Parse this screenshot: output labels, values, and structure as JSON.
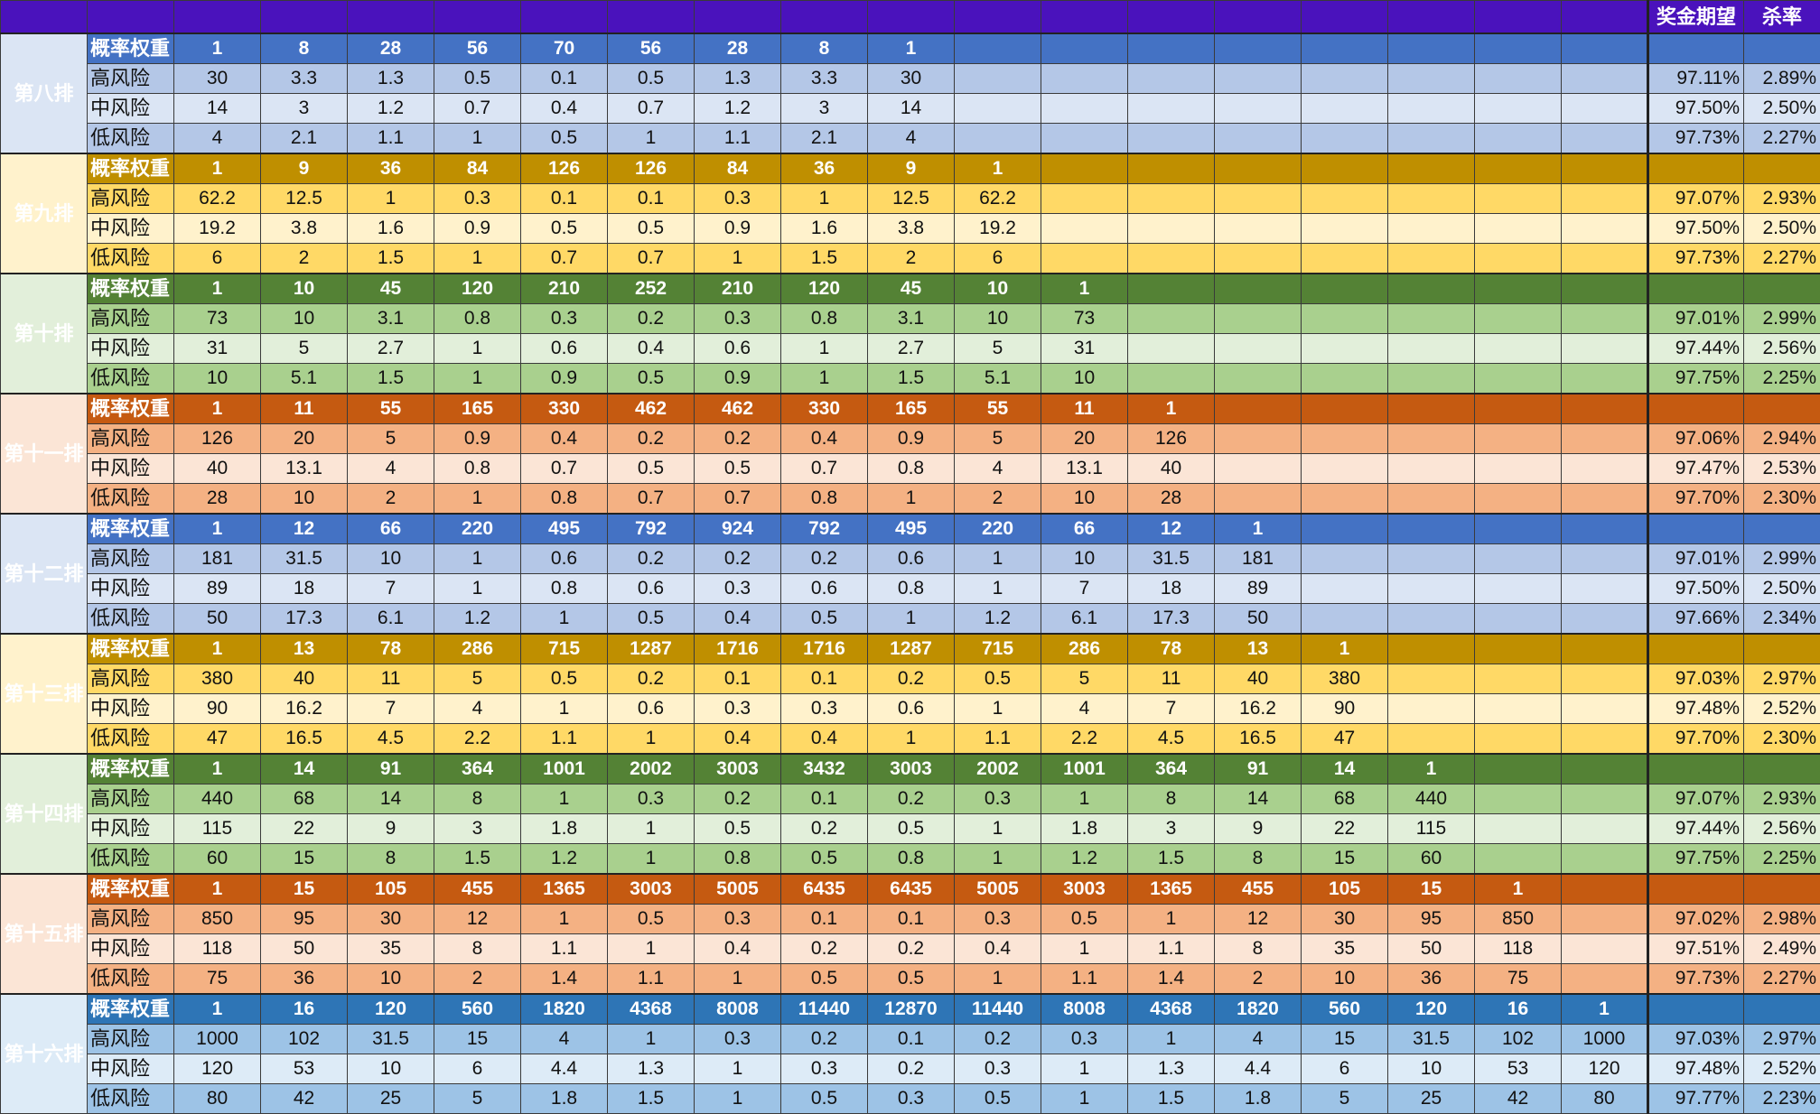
{
  "header": {
    "expected_label": "奖金期望",
    "kill_label": "杀率"
  },
  "groups": [
    {
      "name": "第八排",
      "colors": {
        "weight": "#4472c4",
        "band": "#b4c7e7",
        "light": "#dbe5f4"
      },
      "rows": [
        {
          "label": "概率权重",
          "values": [
            "1",
            "8",
            "28",
            "56",
            "70",
            "56",
            "28",
            "8",
            "1"
          ],
          "expected": "",
          "kill": ""
        },
        {
          "label": "高风险",
          "values": [
            "30",
            "3.3",
            "1.3",
            "0.5",
            "0.1",
            "0.5",
            "1.3",
            "3.3",
            "30"
          ],
          "expected": "97.11%",
          "kill": "2.89%"
        },
        {
          "label": "中风险",
          "values": [
            "14",
            "3",
            "1.2",
            "0.7",
            "0.4",
            "0.7",
            "1.2",
            "3",
            "14"
          ],
          "expected": "97.50%",
          "kill": "2.50%"
        },
        {
          "label": "低风险",
          "values": [
            "4",
            "2.1",
            "1.1",
            "1",
            "0.5",
            "1",
            "1.1",
            "2.1",
            "4"
          ],
          "expected": "97.73%",
          "kill": "2.27%"
        }
      ]
    },
    {
      "name": "第九排",
      "colors": {
        "weight": "#bf8f00",
        "band": "#ffd966",
        "light": "#fff2cc"
      },
      "rows": [
        {
          "label": "概率权重",
          "values": [
            "1",
            "9",
            "36",
            "84",
            "126",
            "126",
            "84",
            "36",
            "9",
            "1"
          ],
          "expected": "",
          "kill": ""
        },
        {
          "label": "高风险",
          "values": [
            "62.2",
            "12.5",
            "1",
            "0.3",
            "0.1",
            "0.1",
            "0.3",
            "1",
            "12.5",
            "62.2"
          ],
          "expected": "97.07%",
          "kill": "2.93%"
        },
        {
          "label": "中风险",
          "values": [
            "19.2",
            "3.8",
            "1.6",
            "0.9",
            "0.5",
            "0.5",
            "0.9",
            "1.6",
            "3.8",
            "19.2"
          ],
          "expected": "97.50%",
          "kill": "2.50%"
        },
        {
          "label": "低风险",
          "values": [
            "6",
            "2",
            "1.5",
            "1",
            "0.7",
            "0.7",
            "1",
            "1.5",
            "2",
            "6"
          ],
          "expected": "97.73%",
          "kill": "2.27%"
        }
      ]
    },
    {
      "name": "第十排",
      "colors": {
        "weight": "#548235",
        "band": "#a9d08e",
        "light": "#e2efda"
      },
      "rows": [
        {
          "label": "概率权重",
          "values": [
            "1",
            "10",
            "45",
            "120",
            "210",
            "252",
            "210",
            "120",
            "45",
            "10",
            "1"
          ],
          "expected": "",
          "kill": ""
        },
        {
          "label": "高风险",
          "values": [
            "73",
            "10",
            "3.1",
            "0.8",
            "0.3",
            "0.2",
            "0.3",
            "0.8",
            "3.1",
            "10",
            "73"
          ],
          "expected": "97.01%",
          "kill": "2.99%"
        },
        {
          "label": "中风险",
          "values": [
            "31",
            "5",
            "2.7",
            "1",
            "0.6",
            "0.4",
            "0.6",
            "1",
            "2.7",
            "5",
            "31"
          ],
          "expected": "97.44%",
          "kill": "2.56%"
        },
        {
          "label": "低风险",
          "values": [
            "10",
            "5.1",
            "1.5",
            "1",
            "0.9",
            "0.5",
            "0.9",
            "1",
            "1.5",
            "5.1",
            "10"
          ],
          "expected": "97.75%",
          "kill": "2.25%"
        }
      ]
    },
    {
      "name": "第十一排",
      "colors": {
        "weight": "#c55a11",
        "band": "#f4b183",
        "light": "#fbe5d6"
      },
      "rows": [
        {
          "label": "概率权重",
          "values": [
            "1",
            "11",
            "55",
            "165",
            "330",
            "462",
            "462",
            "330",
            "165",
            "55",
            "11",
            "1"
          ],
          "expected": "",
          "kill": ""
        },
        {
          "label": "高风险",
          "values": [
            "126",
            "20",
            "5",
            "0.9",
            "0.4",
            "0.2",
            "0.2",
            "0.4",
            "0.9",
            "5",
            "20",
            "126"
          ],
          "expected": "97.06%",
          "kill": "2.94%"
        },
        {
          "label": "中风险",
          "values": [
            "40",
            "13.1",
            "4",
            "0.8",
            "0.7",
            "0.5",
            "0.5",
            "0.7",
            "0.8",
            "4",
            "13.1",
            "40"
          ],
          "expected": "97.47%",
          "kill": "2.53%"
        },
        {
          "label": "低风险",
          "values": [
            "28",
            "10",
            "2",
            "1",
            "0.8",
            "0.7",
            "0.7",
            "0.8",
            "1",
            "2",
            "10",
            "28"
          ],
          "expected": "97.70%",
          "kill": "2.30%"
        }
      ]
    },
    {
      "name": "第十二排",
      "colors": {
        "weight": "#4472c4",
        "band": "#b4c7e7",
        "light": "#dbe5f4"
      },
      "rows": [
        {
          "label": "概率权重",
          "values": [
            "1",
            "12",
            "66",
            "220",
            "495",
            "792",
            "924",
            "792",
            "495",
            "220",
            "66",
            "12",
            "1"
          ],
          "expected": "",
          "kill": ""
        },
        {
          "label": "高风险",
          "values": [
            "181",
            "31.5",
            "10",
            "1",
            "0.6",
            "0.2",
            "0.2",
            "0.2",
            "0.6",
            "1",
            "10",
            "31.5",
            "181"
          ],
          "expected": "97.01%",
          "kill": "2.99%"
        },
        {
          "label": "中风险",
          "values": [
            "89",
            "18",
            "7",
            "1",
            "0.8",
            "0.6",
            "0.3",
            "0.6",
            "0.8",
            "1",
            "7",
            "18",
            "89"
          ],
          "expected": "97.50%",
          "kill": "2.50%"
        },
        {
          "label": "低风险",
          "values": [
            "50",
            "17.3",
            "6.1",
            "1.2",
            "1",
            "0.5",
            "0.4",
            "0.5",
            "1",
            "1.2",
            "6.1",
            "17.3",
            "50"
          ],
          "expected": "97.66%",
          "kill": "2.34%"
        }
      ]
    },
    {
      "name": "第十三排",
      "colors": {
        "weight": "#bf8f00",
        "band": "#ffd966",
        "light": "#fff2cc"
      },
      "rows": [
        {
          "label": "概率权重",
          "values": [
            "1",
            "13",
            "78",
            "286",
            "715",
            "1287",
            "1716",
            "1716",
            "1287",
            "715",
            "286",
            "78",
            "13",
            "1"
          ],
          "expected": "",
          "kill": ""
        },
        {
          "label": "高风险",
          "values": [
            "380",
            "40",
            "11",
            "5",
            "0.5",
            "0.2",
            "0.1",
            "0.1",
            "0.2",
            "0.5",
            "5",
            "11",
            "40",
            "380"
          ],
          "expected": "97.03%",
          "kill": "2.97%"
        },
        {
          "label": "中风险",
          "values": [
            "90",
            "16.2",
            "7",
            "4",
            "1",
            "0.6",
            "0.3",
            "0.3",
            "0.6",
            "1",
            "4",
            "7",
            "16.2",
            "90"
          ],
          "expected": "97.48%",
          "kill": "2.52%"
        },
        {
          "label": "低风险",
          "values": [
            "47",
            "16.5",
            "4.5",
            "2.2",
            "1.1",
            "1",
            "0.4",
            "0.4",
            "1",
            "1.1",
            "2.2",
            "4.5",
            "16.5",
            "47"
          ],
          "expected": "97.70%",
          "kill": "2.30%"
        }
      ]
    },
    {
      "name": "第十四排",
      "colors": {
        "weight": "#548235",
        "band": "#a9d08e",
        "light": "#e2efda"
      },
      "rows": [
        {
          "label": "概率权重",
          "values": [
            "1",
            "14",
            "91",
            "364",
            "1001",
            "2002",
            "3003",
            "3432",
            "3003",
            "2002",
            "1001",
            "364",
            "91",
            "14",
            "1"
          ],
          "expected": "",
          "kill": ""
        },
        {
          "label": "高风险",
          "values": [
            "440",
            "68",
            "14",
            "8",
            "1",
            "0.3",
            "0.2",
            "0.1",
            "0.2",
            "0.3",
            "1",
            "8",
            "14",
            "68",
            "440"
          ],
          "expected": "97.07%",
          "kill": "2.93%"
        },
        {
          "label": "中风险",
          "values": [
            "115",
            "22",
            "9",
            "3",
            "1.8",
            "1",
            "0.5",
            "0.2",
            "0.5",
            "1",
            "1.8",
            "3",
            "9",
            "22",
            "115"
          ],
          "expected": "97.44%",
          "kill": "2.56%"
        },
        {
          "label": "低风险",
          "values": [
            "60",
            "15",
            "8",
            "1.5",
            "1.2",
            "1",
            "0.8",
            "0.5",
            "0.8",
            "1",
            "1.2",
            "1.5",
            "8",
            "15",
            "60"
          ],
          "expected": "97.75%",
          "kill": "2.25%"
        }
      ]
    },
    {
      "name": "第十五排",
      "colors": {
        "weight": "#c55a11",
        "band": "#f4b183",
        "light": "#fbe5d6"
      },
      "rows": [
        {
          "label": "概率权重",
          "values": [
            "1",
            "15",
            "105",
            "455",
            "1365",
            "3003",
            "5005",
            "6435",
            "6435",
            "5005",
            "3003",
            "1365",
            "455",
            "105",
            "15",
            "1"
          ],
          "expected": "",
          "kill": ""
        },
        {
          "label": "高风险",
          "values": [
            "850",
            "95",
            "30",
            "12",
            "1",
            "0.5",
            "0.3",
            "0.1",
            "0.1",
            "0.3",
            "0.5",
            "1",
            "12",
            "30",
            "95",
            "850"
          ],
          "expected": "97.02%",
          "kill": "2.98%"
        },
        {
          "label": "中风险",
          "values": [
            "118",
            "50",
            "35",
            "8",
            "1.1",
            "1",
            "0.4",
            "0.2",
            "0.2",
            "0.4",
            "1",
            "1.1",
            "8",
            "35",
            "50",
            "118"
          ],
          "expected": "97.51%",
          "kill": "2.49%"
        },
        {
          "label": "低风险",
          "values": [
            "75",
            "36",
            "10",
            "2",
            "1.4",
            "1.1",
            "1",
            "0.5",
            "0.5",
            "1",
            "1.1",
            "1.4",
            "2",
            "10",
            "36",
            "75"
          ],
          "expected": "97.73%",
          "kill": "2.27%"
        }
      ]
    },
    {
      "name": "第十六排",
      "colors": {
        "weight": "#2e75b6",
        "band": "#9dc3e6",
        "light": "#ddebf7"
      },
      "rows": [
        {
          "label": "概率权重",
          "values": [
            "1",
            "16",
            "120",
            "560",
            "1820",
            "4368",
            "8008",
            "11440",
            "12870",
            "11440",
            "8008",
            "4368",
            "1820",
            "560",
            "120",
            "16",
            "1"
          ],
          "expected": "",
          "kill": ""
        },
        {
          "label": "高风险",
          "values": [
            "1000",
            "102",
            "31.5",
            "15",
            "4",
            "1",
            "0.3",
            "0.2",
            "0.1",
            "0.2",
            "0.3",
            "1",
            "4",
            "15",
            "31.5",
            "102",
            "1000"
          ],
          "expected": "97.03%",
          "kill": "2.97%"
        },
        {
          "label": "中风险",
          "values": [
            "120",
            "53",
            "10",
            "6",
            "4.4",
            "1.3",
            "1",
            "0.3",
            "0.2",
            "0.3",
            "1",
            "1.3",
            "4.4",
            "6",
            "10",
            "53",
            "120"
          ],
          "expected": "97.48%",
          "kill": "2.52%"
        },
        {
          "label": "低风险",
          "values": [
            "80",
            "42",
            "25",
            "5",
            "1.8",
            "1.5",
            "1",
            "0.5",
            "0.3",
            "0.5",
            "1",
            "1.5",
            "1.8",
            "5",
            "25",
            "42",
            "80"
          ],
          "expected": "97.77%",
          "kill": "2.23%"
        }
      ]
    }
  ]
}
